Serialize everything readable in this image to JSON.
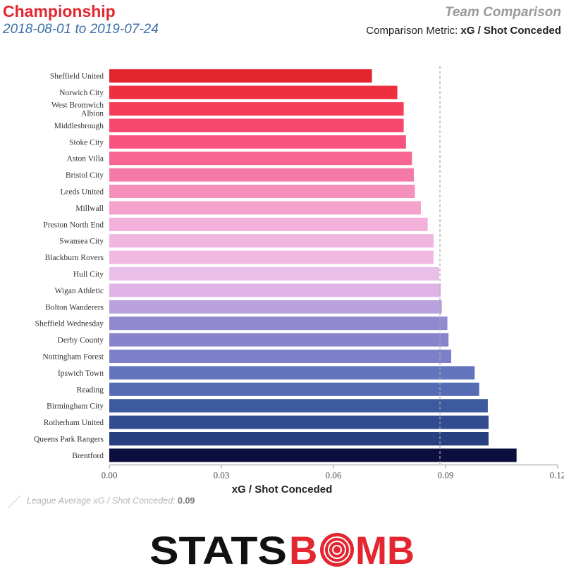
{
  "header": {
    "title": "Championship",
    "dates": "2018-08-01 to 2019-07-24",
    "right_title": "Team Comparison",
    "metric_prefix": "Comparison Metric: ",
    "metric_name": "xG / Shot Conceded"
  },
  "legend": {
    "label": "League Average xG / Shot Conceded: ",
    "value": "0.09"
  },
  "logo": {
    "part1": "STATS",
    "part2": "B",
    "part3": "MB"
  },
  "chart_data": {
    "type": "bar",
    "orientation": "horizontal",
    "xlabel": "xG / Shot Conceded",
    "xlim": [
      0,
      0.12
    ],
    "xticks": [
      "0.00",
      "0.03",
      "0.06",
      "0.09",
      "0.12"
    ],
    "reference_line": 0.0885,
    "categories": [
      "Sheffield United",
      "Norwich City",
      "West Bromwich Albion",
      "Middlesbrough",
      "Stoke City",
      "Aston Villa",
      "Bristol City",
      "Leeds United",
      "Millwall",
      "Preston North End",
      "Swansea City",
      "Blackburn Rovers",
      "Hull City",
      "Wigan Athletic",
      "Bolton Wanderers",
      "Sheffield Wednesday",
      "Derby County",
      "Nottingham Forest",
      "Ipswich Town",
      "Reading",
      "Birmingham City",
      "Rotherham United",
      "Queens Park Rangers",
      "Brentford"
    ],
    "values": [
      0.0703,
      0.0771,
      0.0788,
      0.0788,
      0.0794,
      0.081,
      0.0815,
      0.0818,
      0.0834,
      0.0852,
      0.0868,
      0.0868,
      0.0883,
      0.0887,
      0.089,
      0.0905,
      0.0908,
      0.0915,
      0.0978,
      0.099,
      0.1013,
      0.1015,
      0.1015,
      0.109
    ],
    "colors": [
      "#e1252d",
      "#ee2f3f",
      "#f63d59",
      "#f7476c",
      "#f7537e",
      "#f76592",
      "#f67aa8",
      "#f58fbc",
      "#f3a3cc",
      "#f2b0da",
      "#f0b6e0",
      "#efb9e4",
      "#e9bfe9",
      "#dfb3e6",
      "#b9a1dd",
      "#9189cf",
      "#8884cc",
      "#7b80c8",
      "#6376bd",
      "#556cb4",
      "#3d5a9f",
      "#324c8f",
      "#28407f",
      "#0c0f3d"
    ]
  }
}
